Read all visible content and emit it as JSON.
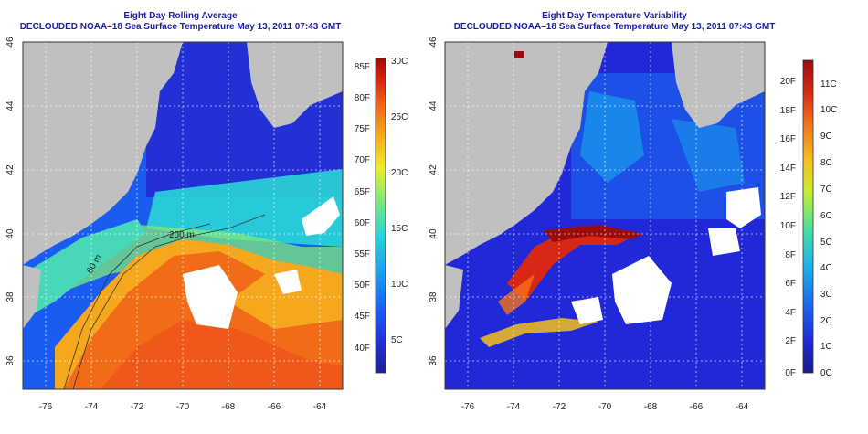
{
  "colors": {
    "land": "#c0c0c0",
    "text_title": "#1c1ca8",
    "sst_scale": [
      "#1f1f9a",
      "#2230d6",
      "#1a5cf0",
      "#1aa0ee",
      "#2ad5d5",
      "#7ee87a",
      "#ecec2a",
      "#f5a81e",
      "#f06018",
      "#d02010",
      "#a00c0c"
    ],
    "var_scale": [
      "#1a1a8c",
      "#2028d8",
      "#1a6af2",
      "#19b2ee",
      "#48e0a0",
      "#c8ee2a",
      "#f6c01c",
      "#f4701a",
      "#d62814",
      "#9c0c0c"
    ]
  },
  "left": {
    "title_line1": "Eight Day Rolling Average",
    "title_line2": "DECLOUDED NOAA–18 Sea Surface Temperature May 13, 2011 07:43 GMT",
    "lat_ticks": [
      "46",
      "44",
      "42",
      "40",
      "38",
      "36"
    ],
    "lon_ticks": [
      "-76",
      "-74",
      "-72",
      "-70",
      "-68",
      "-66",
      "-64"
    ],
    "contour_labels": [
      "60 m",
      "200 m"
    ],
    "colorbar_f": [
      "85F",
      "80F",
      "75F",
      "70F",
      "65F",
      "60F",
      "55F",
      "50F",
      "45F",
      "40F"
    ],
    "colorbar_c": [
      "30C",
      "25C",
      "20C",
      "15C",
      "10C",
      "5C"
    ]
  },
  "right": {
    "title_line1": "Eight Day Temperature Variability",
    "title_line2": "DECLOUDED NOAA–18 Sea Surface Temperature May 13, 2011 07:43 GMT",
    "lat_ticks": [
      "46",
      "44",
      "42",
      "40",
      "38",
      "36"
    ],
    "lon_ticks": [
      "-76",
      "-74",
      "-72",
      "-70",
      "-68",
      "-66",
      "-64"
    ],
    "colorbar_f": [
      "20F",
      "18F",
      "16F",
      "14F",
      "12F",
      "10F",
      "8F",
      "6F",
      "4F",
      "2F",
      "0F"
    ],
    "colorbar_c": [
      "11C",
      "10C",
      "9C",
      "8C",
      "7C",
      "6C",
      "5C",
      "4C",
      "3C",
      "2C",
      "1C",
      "0C"
    ]
  }
}
